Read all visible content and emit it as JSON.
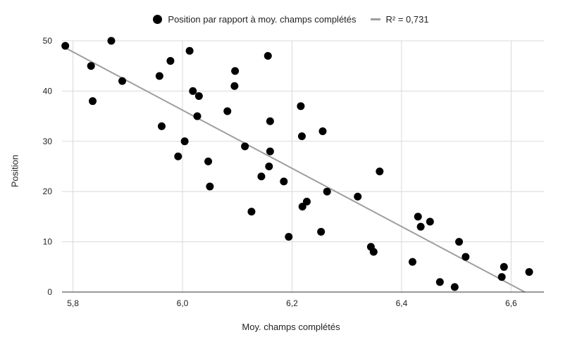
{
  "chart_data": {
    "type": "scatter",
    "xlabel": "Moy. champs complétés",
    "ylabel": "Position",
    "xlim": [
      5.78,
      6.66
    ],
    "ylim": [
      0,
      50
    ],
    "x_ticks": [
      "5,8",
      "6,0",
      "6,2",
      "6,4",
      "6,6"
    ],
    "x_tick_values": [
      5.8,
      6.0,
      6.2,
      6.4,
      6.6
    ],
    "y_ticks": [
      "0",
      "10",
      "20",
      "30",
      "40",
      "50"
    ],
    "y_tick_values": [
      0,
      10,
      20,
      30,
      40,
      50
    ],
    "grid": true,
    "legend_position": "top",
    "series": [
      {
        "name": "Position par rapport à moy. champs complétés",
        "color": "#000000",
        "points": [
          [
            5.786,
            49
          ],
          [
            5.87,
            50
          ],
          [
            5.833,
            45
          ],
          [
            5.836,
            38
          ],
          [
            5.89,
            42
          ],
          [
            5.958,
            43
          ],
          [
            5.978,
            46
          ],
          [
            6.013,
            48
          ],
          [
            5.962,
            33
          ],
          [
            5.992,
            27
          ],
          [
            6.004,
            30
          ],
          [
            6.019,
            40
          ],
          [
            6.03,
            39
          ],
          [
            6.027,
            35
          ],
          [
            6.047,
            26
          ],
          [
            6.05,
            21
          ],
          [
            6.096,
            44
          ],
          [
            6.095,
            41
          ],
          [
            6.082,
            36
          ],
          [
            6.114,
            29
          ],
          [
            6.156,
            47
          ],
          [
            6.126,
            16
          ],
          [
            6.144,
            23
          ],
          [
            6.16,
            34
          ],
          [
            6.16,
            28
          ],
          [
            6.158,
            25
          ],
          [
            6.185,
            22
          ],
          [
            6.194,
            11
          ],
          [
            6.216,
            37
          ],
          [
            6.218,
            31
          ],
          [
            6.256,
            32
          ],
          [
            6.219,
            17
          ],
          [
            6.227,
            18
          ],
          [
            6.264,
            20
          ],
          [
            6.253,
            12
          ],
          [
            6.32,
            19
          ],
          [
            6.36,
            24
          ],
          [
            6.344,
            9
          ],
          [
            6.349,
            8
          ],
          [
            6.43,
            15
          ],
          [
            6.435,
            13
          ],
          [
            6.452,
            14
          ],
          [
            6.42,
            6
          ],
          [
            6.47,
            2
          ],
          [
            6.497,
            1
          ],
          [
            6.505,
            10
          ],
          [
            6.517,
            7
          ],
          [
            6.587,
            5
          ],
          [
            6.583,
            3
          ],
          [
            6.633,
            4
          ]
        ]
      }
    ],
    "trendline": {
      "name": "R² = 0,731",
      "color": "#9e9e9e",
      "x": [
        5.786,
        6.625
      ],
      "y": [
        48.6,
        0
      ]
    }
  }
}
